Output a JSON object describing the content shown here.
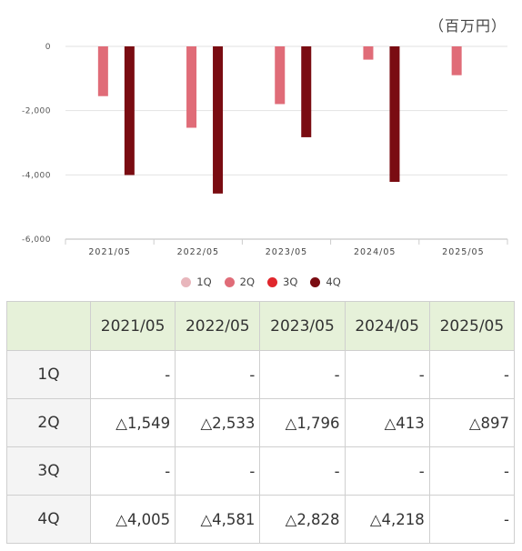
{
  "unit_label": "（百万円）",
  "chart_data": {
    "type": "bar",
    "categories": [
      "2021/05",
      "2022/05",
      "2023/05",
      "2024/05",
      "2025/05"
    ],
    "ylim": [
      -6000,
      0
    ],
    "yticks": [
      0,
      -2000,
      -4000,
      -6000
    ],
    "ytick_labels": [
      "0",
      "-2,000",
      "-4,000",
      "-6,000"
    ],
    "grid": true,
    "legend_position": "bottom-center",
    "series": [
      {
        "name": "1Q",
        "color": "#e8b6bc",
        "values": [
          null,
          null,
          null,
          null,
          null
        ]
      },
      {
        "name": "2Q",
        "color": "#e06c78",
        "values": [
          -1549,
          -2533,
          -1796,
          -413,
          -897
        ]
      },
      {
        "name": "3Q",
        "color": "#e0262c",
        "values": [
          null,
          null,
          null,
          null,
          null
        ]
      },
      {
        "name": "4Q",
        "color": "#7a0c12",
        "values": [
          -4005,
          -4581,
          -2828,
          -4218,
          null
        ]
      }
    ]
  },
  "table": {
    "header": [
      "",
      "2021/05",
      "2022/05",
      "2023/05",
      "2024/05",
      "2025/05"
    ],
    "rows": [
      {
        "label": "1Q",
        "cells": [
          "-",
          "-",
          "-",
          "-",
          "-"
        ]
      },
      {
        "label": "2Q",
        "cells": [
          "△1,549",
          "△2,533",
          "△1,796",
          "△413",
          "△897"
        ]
      },
      {
        "label": "3Q",
        "cells": [
          "-",
          "-",
          "-",
          "-",
          "-"
        ]
      },
      {
        "label": "4Q",
        "cells": [
          "△4,005",
          "△4,581",
          "△2,828",
          "△4,218",
          "-"
        ]
      }
    ]
  }
}
